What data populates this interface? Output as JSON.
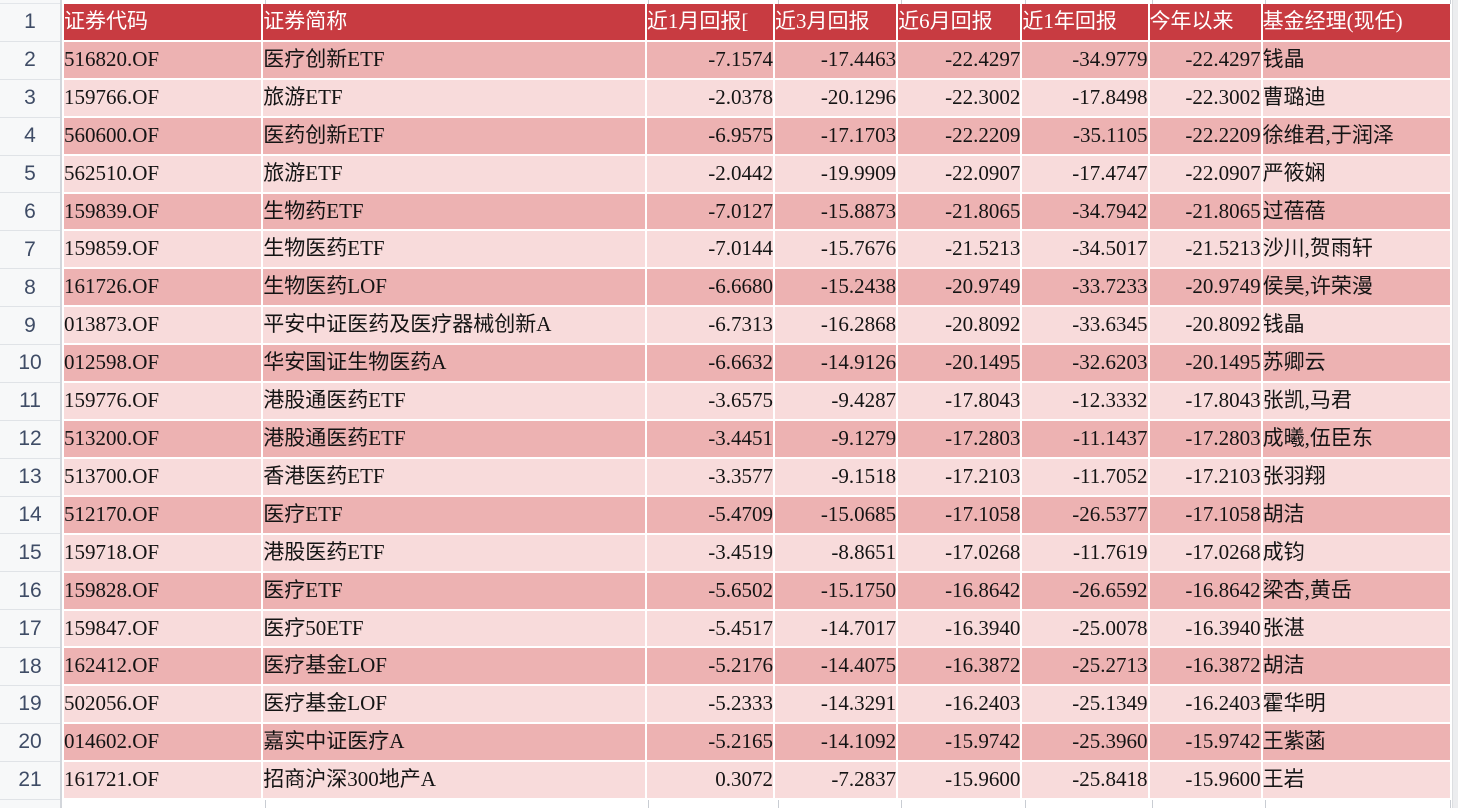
{
  "colors": {
    "header_bg": "#c83b41",
    "header_text": "#ffffff",
    "row_dark_bg": "#edb2b2",
    "row_light_bg": "#f8dbdb",
    "gutter_bg": "#f7f8f9",
    "gutter_text": "#3f4c66",
    "body_text": "#141414"
  },
  "gutter": {
    "row_numbers": [
      "1",
      "2",
      "3",
      "4",
      "5",
      "6",
      "7",
      "8",
      "9",
      "10",
      "11",
      "12",
      "13",
      "14",
      "15",
      "16",
      "17",
      "18",
      "19",
      "20",
      "21"
    ]
  },
  "table": {
    "headers": [
      "证券代码",
      "证券简称",
      "近1月回报[",
      "近3月回报",
      "近6月回报",
      "近1年回报",
      "今年以来",
      "基金经理(现任)"
    ],
    "rows": [
      [
        "516820.OF",
        "医疗创新ETF",
        "-7.1574",
        "-17.4463",
        "-22.4297",
        "-34.9779",
        "-22.4297",
        "钱晶"
      ],
      [
        "159766.OF",
        "旅游ETF",
        "-2.0378",
        "-20.1296",
        "-22.3002",
        "-17.8498",
        "-22.3002",
        "曹璐迪"
      ],
      [
        "560600.OF",
        "医药创新ETF",
        "-6.9575",
        "-17.1703",
        "-22.2209",
        "-35.1105",
        "-22.2209",
        "徐维君,于润泽"
      ],
      [
        "562510.OF",
        "旅游ETF",
        "-2.0442",
        "-19.9909",
        "-22.0907",
        "-17.4747",
        "-22.0907",
        "严筱娴"
      ],
      [
        "159839.OF",
        "生物药ETF",
        "-7.0127",
        "-15.8873",
        "-21.8065",
        "-34.7942",
        "-21.8065",
        "过蓓蓓"
      ],
      [
        "159859.OF",
        "生物医药ETF",
        "-7.0144",
        "-15.7676",
        "-21.5213",
        "-34.5017",
        "-21.5213",
        "沙川,贺雨轩"
      ],
      [
        "161726.OF",
        "生物医药LOF",
        "-6.6680",
        "-15.2438",
        "-20.9749",
        "-33.7233",
        "-20.9749",
        "侯昊,许荣漫"
      ],
      [
        "013873.OF",
        "平安中证医药及医疗器械创新A",
        "-6.7313",
        "-16.2868",
        "-20.8092",
        "-33.6345",
        "-20.8092",
        "钱晶"
      ],
      [
        "012598.OF",
        "华安国证生物医药A",
        "-6.6632",
        "-14.9126",
        "-20.1495",
        "-32.6203",
        "-20.1495",
        "苏卿云"
      ],
      [
        "159776.OF",
        "港股通医药ETF",
        "-3.6575",
        "-9.4287",
        "-17.8043",
        "-12.3332",
        "-17.8043",
        "张凯,马君"
      ],
      [
        "513200.OF",
        "港股通医药ETF",
        "-3.4451",
        "-9.1279",
        "-17.2803",
        "-11.1437",
        "-17.2803",
        "成曦,伍臣东"
      ],
      [
        "513700.OF",
        "香港医药ETF",
        "-3.3577",
        "-9.1518",
        "-17.2103",
        "-11.7052",
        "-17.2103",
        "张羽翔"
      ],
      [
        "512170.OF",
        "医疗ETF",
        "-5.4709",
        "-15.0685",
        "-17.1058",
        "-26.5377",
        "-17.1058",
        "胡洁"
      ],
      [
        "159718.OF",
        "港股医药ETF",
        "-3.4519",
        "-8.8651",
        "-17.0268",
        "-11.7619",
        "-17.0268",
        "成钧"
      ],
      [
        "159828.OF",
        "医疗ETF",
        "-5.6502",
        "-15.1750",
        "-16.8642",
        "-26.6592",
        "-16.8642",
        "梁杏,黄岳"
      ],
      [
        "159847.OF",
        "医疗50ETF",
        "-5.4517",
        "-14.7017",
        "-16.3940",
        "-25.0078",
        "-16.3940",
        "张湛"
      ],
      [
        "162412.OF",
        "医疗基金LOF",
        "-5.2176",
        "-14.4075",
        "-16.3872",
        "-25.2713",
        "-16.3872",
        "胡洁"
      ],
      [
        "502056.OF",
        "医疗基金LOF",
        "-5.2333",
        "-14.3291",
        "-16.2403",
        "-25.1349",
        "-16.2403",
        "霍华明"
      ],
      [
        "014602.OF",
        "嘉实中证医疗A",
        "-5.2165",
        "-14.1092",
        "-15.9742",
        "-25.3960",
        "-15.9742",
        "王紫菡"
      ],
      [
        "161721.OF",
        "招商沪深300地产A",
        "0.3072",
        "-7.2837",
        "-15.9600",
        "-25.8418",
        "-15.9600",
        "王岩"
      ]
    ]
  }
}
